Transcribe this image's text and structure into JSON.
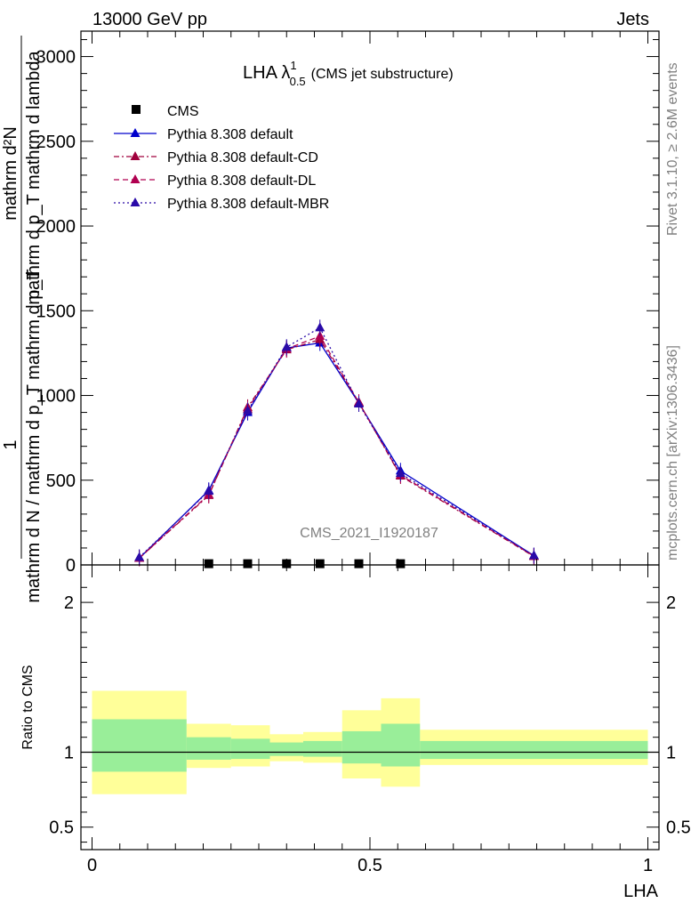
{
  "header": {
    "left": "13000 GeV pp",
    "right": "Jets"
  },
  "side": {
    "rivet": "Rivet 3.1.10, ≥ 2.6M events",
    "mcplots": "mcplots.cern.ch [arXiv:1306.3436]"
  },
  "chart_data": [
    {
      "type": "line",
      "title": "LHA λ",
      "title_super": "1",
      "title_sub": "0.5",
      "title_suffix": "(CMS jet substructure)",
      "watermark": "CMS_2021_I1920187",
      "ylabel_lines": [
        "1",
        "mathrm d N / mathrm d p_T mathrm d p_T",
        "mathrm d²N",
        "mathrm d p_T mathrm d lambda"
      ],
      "xlim": [
        -0.02,
        1.02
      ],
      "ylim": [
        0,
        3150
      ],
      "yticks": [
        0,
        500,
        1000,
        1500,
        2000,
        2500,
        3000
      ],
      "ytick_labels": [
        "0",
        "500",
        "1000",
        "1500",
        "2000",
        "2500",
        "3000"
      ],
      "legend_position": "top-left",
      "series": [
        {
          "name": "CMS",
          "marker": "square",
          "color": "#000000",
          "x": [
            0.21,
            0.28,
            0.35,
            0.41,
            0.48,
            0.555
          ],
          "y": [
            2,
            2,
            2,
            2,
            2,
            2
          ]
        },
        {
          "name": "Pythia 8.308 default",
          "marker": "triangle",
          "line": "solid",
          "color": "#0000cc",
          "x": [
            0.085,
            0.21,
            0.28,
            0.35,
            0.41,
            0.48,
            0.555,
            0.795
          ],
          "y": [
            40,
            440,
            900,
            1280,
            1310,
            955,
            555,
            55
          ]
        },
        {
          "name": "Pythia 8.308 default-CD",
          "marker": "triangle",
          "line": "dashdot",
          "color": "#a0003c",
          "x": [
            0.085,
            0.21,
            0.28,
            0.35,
            0.41,
            0.48,
            0.555,
            0.795
          ],
          "y": [
            40,
            410,
            930,
            1270,
            1330,
            960,
            525,
            50
          ]
        },
        {
          "name": "Pythia 8.308 default-DL",
          "marker": "triangle",
          "line": "dashed",
          "color": "#b00050",
          "x": [
            0.085,
            0.21,
            0.28,
            0.35,
            0.41,
            0.48,
            0.555,
            0.795
          ],
          "y": [
            40,
            415,
            920,
            1275,
            1350,
            958,
            530,
            52
          ]
        },
        {
          "name": "Pythia 8.308 default-MBR",
          "marker": "triangle",
          "line": "dotted",
          "color": "#2a0aa8",
          "x": [
            0.085,
            0.21,
            0.28,
            0.35,
            0.41,
            0.48,
            0.555,
            0.795
          ],
          "y": [
            45,
            435,
            910,
            1285,
            1400,
            950,
            540,
            55
          ]
        }
      ]
    },
    {
      "type": "bar",
      "ylabel": "Ratio to CMS",
      "xlabel": "LHA",
      "xlim": [
        -0.02,
        1.02
      ],
      "ylim": [
        0.35,
        2.25
      ],
      "yticks": [
        0.5,
        1,
        2
      ],
      "ytick_labels": [
        "0.5",
        "1",
        "2"
      ],
      "xticks": [
        0,
        0.5,
        1
      ],
      "xtick_labels": [
        "0",
        "0.5",
        "1"
      ],
      "bins": [
        0,
        0.17,
        0.25,
        0.32,
        0.38,
        0.45,
        0.52,
        0.59,
        1.0
      ],
      "band_inner_low": [
        0.87,
        0.95,
        0.955,
        0.975,
        0.97,
        0.925,
        0.905,
        0.955
      ],
      "band_inner_high": [
        1.22,
        1.1,
        1.09,
        1.065,
        1.075,
        1.14,
        1.19,
        1.075
      ],
      "band_outer_low": [
        0.72,
        0.895,
        0.905,
        0.94,
        0.93,
        0.825,
        0.77,
        0.915
      ],
      "band_outer_high": [
        1.41,
        1.19,
        1.18,
        1.12,
        1.135,
        1.28,
        1.36,
        1.15
      ],
      "inner_color": "#99ee99",
      "outer_color": "#ffff99",
      "reference": 1
    }
  ]
}
